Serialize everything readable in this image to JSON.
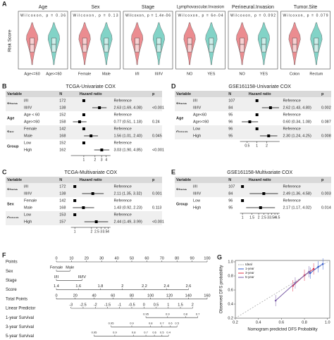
{
  "chart_data": [
    {
      "type": "violin",
      "panel": "A",
      "ylabel": "Risk Score",
      "colors": [
        "#e8787c",
        "#6ccbbd"
      ],
      "subplots": [
        {
          "title": "Age",
          "stat": "Wilcoxon, p = 0.36",
          "categories": [
            "Age<=60",
            "Age>=60"
          ]
        },
        {
          "title": "Sex",
          "stat": "Wilcoxon, p = 0.13",
          "categories": [
            "Female",
            "Male"
          ]
        },
        {
          "title": "Stage",
          "stat": "Wilcoxon, p = 1.4e-06",
          "categories": [
            "I/II",
            "III/IV"
          ]
        },
        {
          "title": "Lymphovascular.Invasion",
          "stat": "Wilcoxon, p = 6e-04",
          "categories": [
            "NO",
            "YES"
          ]
        },
        {
          "title": "Perineural.Invasion",
          "stat": "Wilcoxon, p = 0.092",
          "categories": [
            "NO",
            "YES"
          ]
        },
        {
          "title": "Tumor.Site",
          "stat": "Wilcoxon, p = 0.079",
          "categories": [
            "Colon",
            "Rectum"
          ]
        }
      ]
    },
    {
      "type": "forest",
      "panel": "B",
      "title": "TCGA-Univariate COX",
      "columns": {
        "variable": "Variable",
        "n": "N",
        "effect": "Hazard ratio",
        "p": "p"
      },
      "log_x": true,
      "xlim": [
        0.45,
        5.2
      ],
      "xticks": [
        1,
        2,
        3,
        4
      ],
      "rows": [
        {
          "group": "Stage",
          "level": "I/II",
          "n": 172,
          "hr": 1,
          "text": "Reference"
        },
        {
          "level": "III/IV",
          "n": 138,
          "hr": 2.63,
          "lo": 1.69,
          "hi": 4.08,
          "text": "2.63 (1.69, 4.08)",
          "p": "<0.001"
        },
        {
          "group": "Age",
          "level": "Age < 60",
          "n": 152,
          "hr": 1,
          "text": "Reference"
        },
        {
          "level": "Age>=60",
          "n": 158,
          "hr": 0.77,
          "lo": 0.51,
          "hi": 1.18,
          "text": "0.77 (0.51, 1.18)",
          "p": "0.24"
        },
        {
          "group": "Sex",
          "level": "Female",
          "n": 142,
          "hr": 1,
          "text": "Reference"
        },
        {
          "level": "Male",
          "n": 168,
          "hr": 1.56,
          "lo": 1.01,
          "hi": 2.4,
          "text": "1.56 (1.01, 2.40)",
          "p": "0.045"
        },
        {
          "group": "Group",
          "level": "Low",
          "n": 152,
          "hr": 1,
          "text": "Reference"
        },
        {
          "level": "High",
          "n": 162,
          "hr": 3.03,
          "lo": 1.9,
          "hi": 4.85,
          "text": "3.03 (1.90, 4.85)",
          "p": "<0.001"
        }
      ]
    },
    {
      "type": "forest",
      "panel": "D",
      "title": "GSE161158-Univariate COX",
      "columns": {
        "variable": "Variable",
        "n": "N",
        "effect": "Hazard ratio",
        "p": "p"
      },
      "log_x": true,
      "xlim": [
        0.3,
        5
      ],
      "xticks": [
        0.5,
        1,
        2
      ],
      "rows": [
        {
          "group": "Stage",
          "level": "I/II",
          "n": 107,
          "hr": 1,
          "text": "Reference"
        },
        {
          "level": "III/IV",
          "n": 84,
          "hr": 2.62,
          "lo": 1.43,
          "hi": 4.8,
          "text": "2.62 (1.43, 4.80)",
          "p": "0.002"
        },
        {
          "group": "Age",
          "level": "Age<60",
          "n": 95,
          "hr": 1,
          "text": "Reference"
        },
        {
          "level": "Age>=60",
          "n": 96,
          "hr": 0.6,
          "lo": 0.34,
          "hi": 1.08,
          "text": "0.60 (0.34, 1.08)",
          "p": "0.087"
        },
        {
          "group": "Group",
          "level": "Low",
          "n": 96,
          "hr": 1,
          "text": "Reference"
        },
        {
          "level": "High",
          "n": 95,
          "hr": 2.3,
          "lo": 1.24,
          "hi": 4.25,
          "text": "2.30 (1.24, 4.25)",
          "p": "0.008"
        }
      ]
    },
    {
      "type": "forest",
      "panel": "C",
      "title": "TCGA-Multivariate COX",
      "columns": {
        "variable": "Variable",
        "n": "N",
        "effect": "Hazard ratio",
        "p": "p"
      },
      "log_x": true,
      "xlim": [
        0.85,
        4.4
      ],
      "xticks": [
        1,
        2,
        2.5,
        3,
        3.5,
        4
      ],
      "rows": [
        {
          "group": "Stage",
          "level": "I/II",
          "n": 172,
          "hr": 1,
          "text": "Reference"
        },
        {
          "level": "III/IV",
          "n": 138,
          "hr": 2.11,
          "lo": 1.35,
          "hi": 3.32,
          "text": "2.11 (1.35, 3.32)",
          "p": "0.001"
        },
        {
          "group": "Sex",
          "level": "Female",
          "n": 142,
          "hr": 1,
          "text": "Reference"
        },
        {
          "level": "Male",
          "n": 168,
          "hr": 1.43,
          "lo": 0.92,
          "hi": 2.23,
          "text": "1.43 (0.92, 2.23)",
          "p": "0.113"
        },
        {
          "group": "Group",
          "level": "Low",
          "n": 153,
          "hr": 1,
          "text": "Reference"
        },
        {
          "level": "High",
          "n": 157,
          "hr": 2.44,
          "lo": 1.49,
          "hi": 3.99,
          "text": "2.44 (1.49, 3.99)",
          "p": "<0.001"
        }
      ]
    },
    {
      "type": "forest",
      "panel": "E",
      "title": "GSE161158-Multivariate COX",
      "columns": {
        "variable": "Variable",
        "n": "N",
        "effect": "Hazard ratio",
        "p": "p"
      },
      "log_x": true,
      "xlim": [
        0.9,
        4.9
      ],
      "xticks": [
        1,
        1.5,
        2,
        2.5,
        3,
        3.5,
        4,
        4.5
      ],
      "rows": [
        {
          "group": "Stage",
          "level": "I/II",
          "n": 107,
          "hr": 1,
          "text": "Reference"
        },
        {
          "level": "III/IV",
          "n": 84,
          "hr": 2.49,
          "lo": 1.36,
          "hi": 4.58,
          "text": "2.49 (1.36, 4.58)",
          "p": "0.003"
        },
        {
          "group": "Group",
          "level": "Low",
          "n": 96,
          "hr": 1,
          "text": "Reference"
        },
        {
          "level": "High",
          "n": 95,
          "hr": 2.17,
          "lo": 1.17,
          "hi": 4.02,
          "text": "2.17 (1.17, 4.02)",
          "p": "0.014"
        }
      ]
    },
    {
      "type": "nomogram",
      "panel": "F",
      "scales": [
        {
          "name": "Points",
          "xlim": [
            0,
            100
          ],
          "ticks": [
            0,
            10,
            20,
            30,
            40,
            50,
            60,
            70,
            80,
            90,
            100
          ]
        },
        {
          "name": "Sex",
          "xlim": [
            0,
            100
          ],
          "ticks": [
            {
              "value": 0,
              "label": "Female"
            },
            {
              "value": 9,
              "label": "Male"
            }
          ]
        },
        {
          "name": "Stage",
          "xlim": [
            0,
            100
          ],
          "ticks": [
            {
              "value": 0,
              "label": "I/II"
            },
            {
              "value": 17,
              "label": "III/IV"
            }
          ]
        },
        {
          "name": "Score",
          "xlim": [
            1.4,
            2.77
          ],
          "ticks": [
            1.4,
            1.6,
            1.8,
            2,
            2.2,
            2.4,
            2.6
          ]
        },
        {
          "name": "Total Points",
          "xlim": [
            0,
            160
          ],
          "ticks": [
            0,
            20,
            40,
            60,
            80,
            100,
            120,
            140,
            160
          ]
        },
        {
          "name": "Linear Predictor",
          "xlim": [
            -3.6,
            2.6
          ],
          "ticks": [
            -3,
            -2.5,
            -2,
            -1.5,
            -1,
            -0.5,
            0,
            0.5,
            1,
            1.5,
            2
          ]
        },
        {
          "name": "1-year Survival",
          "xlim": [
            0,
            160
          ],
          "ticks": [
            {
              "value": 95,
              "label": "0.95"
            },
            {
              "value": 118,
              "label": "0.9"
            },
            {
              "value": 137,
              "label": "0.8"
            },
            {
              "value": 150,
              "label": "0.7"
            }
          ]
        },
        {
          "name": "3-year Survival",
          "xlim": [
            0,
            160
          ],
          "ticks": [
            {
              "value": 58,
              "label": "0.95"
            },
            {
              "value": 80,
              "label": "0.9"
            },
            {
              "value": 100,
              "label": "0.8"
            },
            {
              "value": 112,
              "label": "0.7"
            },
            {
              "value": 121,
              "label": "0.6"
            },
            {
              "value": 128,
              "label": "0.5"
            }
          ]
        },
        {
          "name": "5-year Survival",
          "xlim": [
            0,
            160
          ],
          "ticks": [
            {
              "value": 40,
              "label": "0.95"
            },
            {
              "value": 62,
              "label": "0.9"
            },
            {
              "value": 82,
              "label": "0.8"
            },
            {
              "value": 95,
              "label": "0.7"
            },
            {
              "value": 104,
              "label": "0.6"
            },
            {
              "value": 112,
              "label": "0.5"
            },
            {
              "value": 119,
              "label": "0.4"
            }
          ]
        }
      ]
    },
    {
      "type": "calibration",
      "panel": "G",
      "xlabel": "Nomogram predicted DFS Probability",
      "ylabel": "Observed DFS probability",
      "xlim": [
        0.2,
        1.02
      ],
      "ylim": [
        0.2,
        1.02
      ],
      "xticks": [
        0.2,
        0.4,
        0.6,
        0.8,
        {
          "value": 1,
          "label": "1.0"
        }
      ],
      "yticks": [
        0.2,
        0.4,
        0.6,
        0.8,
        {
          "value": 1,
          "label": "1.0"
        }
      ],
      "legend": "top-left",
      "series": [
        {
          "name": "Ideal",
          "color": "#aaaaaa",
          "dash": true,
          "x": [
            0.2,
            1
          ],
          "y": [
            0.2,
            1
          ]
        },
        {
          "name": "1-year",
          "color": "#3a5fcd",
          "x": [
            0.85,
            0.92,
            0.96
          ],
          "y": [
            0.84,
            0.93,
            0.97
          ]
        },
        {
          "name": "3-year",
          "color": "#e0304a",
          "x": [
            0.7,
            0.8,
            0.88
          ],
          "y": [
            0.66,
            0.81,
            0.9
          ]
        },
        {
          "name": "5-year",
          "color": "#7b5ea7",
          "x": [
            0.55,
            0.72,
            0.84
          ],
          "y": [
            0.45,
            0.7,
            0.86
          ]
        }
      ]
    }
  ]
}
